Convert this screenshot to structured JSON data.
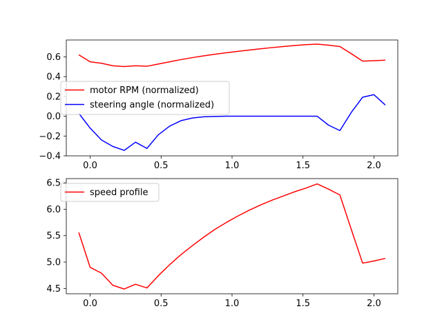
{
  "chart_data": [
    {
      "type": "line",
      "xlim": [
        -0.168,
        2.168
      ],
      "ylim": [
        -0.4,
        0.77
      ],
      "x_ticks": [
        0.0,
        0.5,
        1.0,
        1.5,
        2.0
      ],
      "x_tick_labels": [
        "0.0",
        "0.5",
        "1.0",
        "1.5",
        "2.0"
      ],
      "y_ticks": [
        -0.4,
        -0.2,
        0.0,
        0.2,
        0.4,
        0.6
      ],
      "y_tick_labels": [
        "−0.4",
        "−0.2",
        "0.0",
        "0.2",
        "0.4",
        "0.6"
      ],
      "grid": false,
      "legend_placement": "center-left",
      "x": [
        -0.08,
        0.0,
        0.08,
        0.16,
        0.24,
        0.32,
        0.4,
        0.48,
        0.56,
        0.64,
        0.72,
        0.8,
        0.88,
        0.96,
        1.04,
        1.12,
        1.2,
        1.28,
        1.36,
        1.44,
        1.52,
        1.6,
        1.68,
        1.76,
        1.84,
        1.92,
        2.0,
        2.08
      ],
      "series": [
        {
          "name": "motor RPM (normalized)",
          "color": "#ff0000",
          "values": [
            0.62,
            0.55,
            0.535,
            0.51,
            0.502,
            0.51,
            0.505,
            0.527,
            0.55,
            0.572,
            0.592,
            0.61,
            0.626,
            0.641,
            0.655,
            0.668,
            0.681,
            0.693,
            0.704,
            0.714,
            0.723,
            0.728,
            0.718,
            0.704,
            0.632,
            0.557,
            0.561,
            0.566
          ]
        },
        {
          "name": "steering angle (normalized)",
          "color": "#0000ff",
          "values": [
            0.03,
            -0.12,
            -0.24,
            -0.305,
            -0.345,
            -0.262,
            -0.325,
            -0.188,
            -0.1,
            -0.045,
            -0.018,
            -0.006,
            -0.002,
            0.0,
            0.0,
            0.0,
            0.0,
            0.0,
            0.0,
            0.0,
            0.0,
            0.0,
            -0.09,
            -0.145,
            0.038,
            0.192,
            0.218,
            0.113
          ]
        }
      ]
    },
    {
      "type": "line",
      "xlim": [
        -0.168,
        2.168
      ],
      "ylim": [
        4.4,
        6.58
      ],
      "x_ticks": [
        0.0,
        0.5,
        1.0,
        1.5,
        2.0
      ],
      "x_tick_labels": [
        "0.0",
        "0.5",
        "1.0",
        "1.5",
        "2.0"
      ],
      "y_ticks": [
        4.5,
        5.0,
        5.5,
        6.0,
        6.5
      ],
      "y_tick_labels": [
        "4.5",
        "5.0",
        "5.5",
        "6.0",
        "6.5"
      ],
      "grid": false,
      "legend_placement": "top-left",
      "x": [
        -0.08,
        0.0,
        0.08,
        0.16,
        0.24,
        0.32,
        0.4,
        0.48,
        0.56,
        0.64,
        0.72,
        0.8,
        0.88,
        0.96,
        1.04,
        1.12,
        1.2,
        1.28,
        1.36,
        1.44,
        1.52,
        1.6,
        1.68,
        1.76,
        1.84,
        1.92,
        2.0,
        2.08
      ],
      "series": [
        {
          "name": "speed profile",
          "color": "#ff0000",
          "values": [
            5.56,
            4.9,
            4.79,
            4.56,
            4.49,
            4.58,
            4.51,
            4.74,
            4.95,
            5.14,
            5.31,
            5.47,
            5.62,
            5.75,
            5.87,
            5.98,
            6.08,
            6.17,
            6.25,
            6.33,
            6.4,
            6.48,
            6.38,
            6.27,
            5.62,
            4.98,
            5.02,
            5.07
          ]
        }
      ]
    }
  ]
}
